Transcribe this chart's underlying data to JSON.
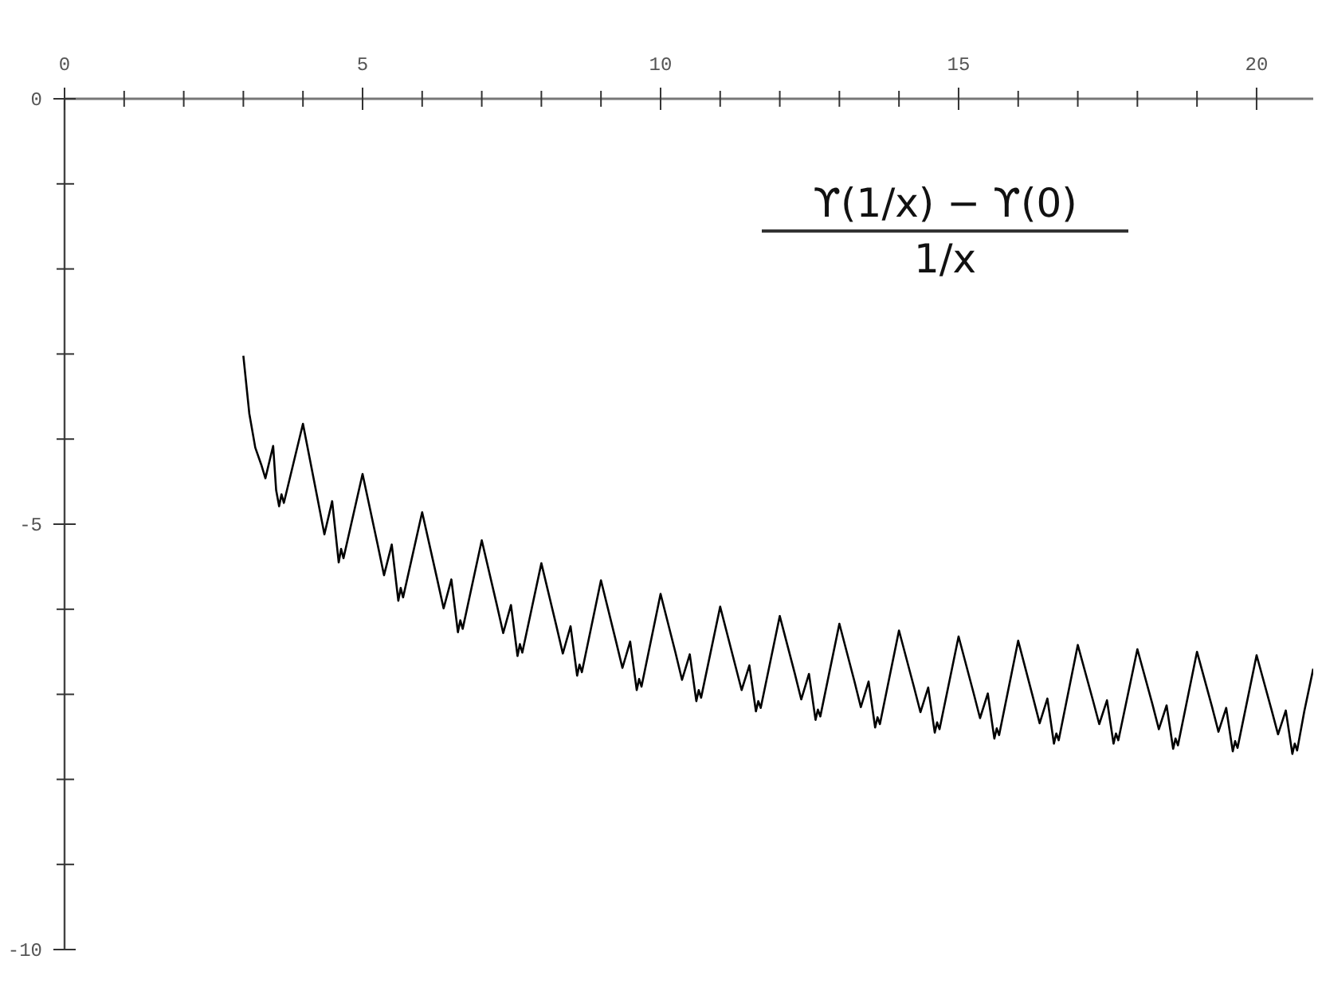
{
  "chart_data": {
    "type": "line",
    "annotations": [
      "ϒ(1/x) − ϒ(0)",
      "1/x"
    ],
    "series": [
      {
        "color": "#000000",
        "x": [
          3,
          3.1,
          3.2,
          3.3,
          3.37,
          3.5,
          3.55,
          3.6,
          3.64,
          3.68,
          4,
          4.25,
          4.36,
          4.49,
          4.6,
          4.64,
          4.68,
          5,
          5.25,
          5.36,
          5.49,
          5.6,
          5.64,
          5.68,
          6,
          6.25,
          6.36,
          6.49,
          6.6,
          6.64,
          6.68,
          7,
          7.25,
          7.36,
          7.49,
          7.6,
          7.64,
          7.68,
          8,
          8.25,
          8.36,
          8.49,
          8.6,
          8.64,
          8.68,
          9,
          9.25,
          9.36,
          9.49,
          9.6,
          9.64,
          9.68,
          10,
          10.25,
          10.36,
          10.49,
          10.6,
          10.64,
          10.68,
          11,
          11.25,
          11.36,
          11.49,
          11.6,
          11.64,
          11.68,
          12,
          12.25,
          12.36,
          12.49,
          12.6,
          12.64,
          12.68,
          13,
          13.25,
          13.36,
          13.49,
          13.6,
          13.64,
          13.68,
          14,
          14.25,
          14.36,
          14.49,
          14.6,
          14.64,
          14.68,
          15,
          15.25,
          15.36,
          15.49,
          15.6,
          15.64,
          15.68,
          16,
          16.25,
          16.36,
          16.49,
          16.6,
          16.64,
          16.68,
          17,
          17.25,
          17.36,
          17.49,
          17.6,
          17.64,
          17.68,
          18,
          18.25,
          18.36,
          18.49,
          18.6,
          18.64,
          18.68,
          19,
          19.25,
          19.36,
          19.49,
          19.6,
          19.64,
          19.68,
          20,
          20.25,
          20.36,
          20.49,
          20.6,
          20.64,
          20.68,
          20.8,
          20.95
        ],
        "values": [
          -3.02,
          -3.7,
          -4.1,
          -4.3,
          -4.46,
          -4.08,
          -4.6,
          -4.79,
          -4.65,
          -4.75,
          -3.82,
          -4.72,
          -5.12,
          -4.73,
          -5.45,
          -5.29,
          -5.4,
          -4.41,
          -5.23,
          -5.6,
          -5.24,
          -5.9,
          -5.75,
          -5.86,
          -4.86,
          -5.64,
          -5.99,
          -5.65,
          -6.27,
          -6.13,
          -6.23,
          -5.19,
          -5.94,
          -6.28,
          -5.95,
          -6.55,
          -6.41,
          -6.51,
          -5.46,
          -6.19,
          -6.52,
          -6.2,
          -6.78,
          -6.65,
          -6.74,
          -5.66,
          -6.37,
          -6.69,
          -6.38,
          -6.95,
          -6.82,
          -6.91,
          -5.82,
          -6.51,
          -6.83,
          -6.53,
          -7.08,
          -6.95,
          -7.04,
          -5.97,
          -6.65,
          -6.95,
          -6.66,
          -7.2,
          -7.08,
          -7.16,
          -6.08,
          -6.75,
          -7.06,
          -6.76,
          -7.3,
          -7.18,
          -7.26,
          -6.17,
          -6.84,
          -7.15,
          -6.85,
          -7.39,
          -7.27,
          -7.35,
          -6.25,
          -6.91,
          -7.21,
          -6.92,
          -7.45,
          -7.33,
          -7.41,
          -6.32,
          -6.98,
          -7.28,
          -6.99,
          -7.52,
          -7.4,
          -7.48,
          -6.37,
          -7.04,
          -7.34,
          -7.05,
          -7.58,
          -7.46,
          -7.54,
          -6.42,
          -7.06,
          -7.35,
          -7.07,
          -7.58,
          -7.46,
          -7.54,
          -6.47,
          -7.11,
          -7.41,
          -7.13,
          -7.64,
          -7.52,
          -7.6,
          -6.5,
          -7.14,
          -7.44,
          -7.16,
          -7.67,
          -7.55,
          -7.63,
          -6.54,
          -7.18,
          -7.47,
          -7.19,
          -7.7,
          -7.58,
          -7.66,
          -7.2,
          -6.7
        ]
      }
    ],
    "xlim": [
      0,
      20.95
    ],
    "ylim": [
      -10,
      0
    ],
    "xticks": [
      0,
      {
        "value": 1,
        "label": null
      },
      {
        "value": 2,
        "label": null
      },
      {
        "value": 3,
        "label": null
      },
      {
        "value": 4,
        "label": null
      },
      5,
      {
        "value": 6,
        "label": null
      },
      {
        "value": 7,
        "label": null
      },
      {
        "value": 8,
        "label": null
      },
      {
        "value": 9,
        "label": null
      },
      10,
      {
        "value": 11,
        "label": null
      },
      {
        "value": 12,
        "label": null
      },
      {
        "value": 13,
        "label": null
      },
      {
        "value": 14,
        "label": null
      },
      15,
      {
        "value": 16,
        "label": null
      },
      {
        "value": 17,
        "label": null
      },
      {
        "value": 18,
        "label": null
      },
      {
        "value": 19,
        "label": null
      },
      20
    ],
    "yticks": [
      0,
      {
        "value": -1,
        "label": null
      },
      {
        "value": -2,
        "label": null
      },
      {
        "value": -3,
        "label": null
      },
      {
        "value": -4,
        "label": null
      },
      -5,
      {
        "value": -6,
        "label": null
      },
      {
        "value": -7,
        "label": null
      },
      {
        "value": -8,
        "label": null
      },
      {
        "value": -9,
        "label": null
      },
      -10
    ]
  }
}
